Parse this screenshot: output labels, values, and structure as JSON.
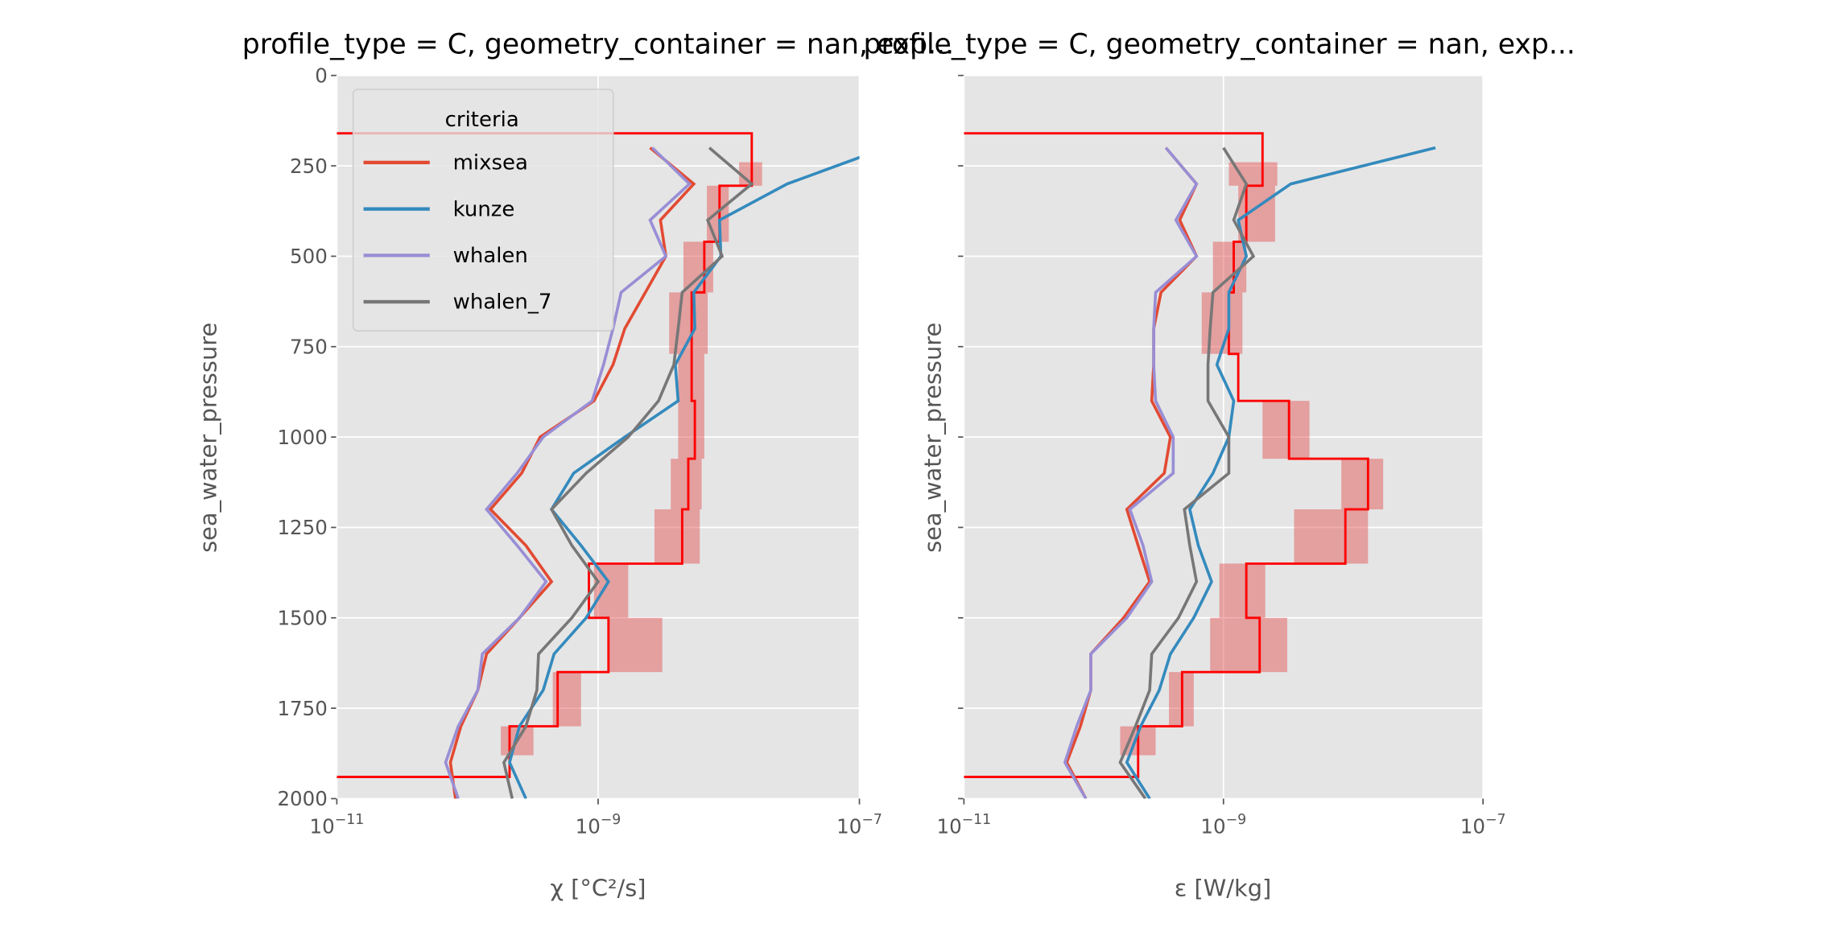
{
  "chart_data": [
    {
      "type": "line",
      "title": "profile_type = C, geometry_container = nan, exp...",
      "xlabel": "χ [°C²/s]",
      "ylabel": "sea_water_pressure",
      "xscale": "log",
      "xlim": [
        1e-11,
        1e-07
      ],
      "ylim": [
        2000,
        0
      ],
      "xticks": [
        "10^-11",
        "10^-9",
        "10^-7"
      ],
      "yticks": [
        "0",
        "250",
        "500",
        "750",
        "1000",
        "1250",
        "1500",
        "1750",
        "2000"
      ],
      "grid": true,
      "legend": {
        "title": "criteria",
        "placement": "upper-left"
      },
      "pressure": [
        200,
        300,
        400,
        500,
        600,
        700,
        800,
        900,
        1000,
        1100,
        1200,
        1300,
        1400,
        1500,
        1600,
        1700,
        1800,
        1900,
        2000
      ],
      "series": [
        {
          "name": "mixsea",
          "color": "#E24A33",
          "values": [
            2.5e-09,
            5.4e-09,
            3e-09,
            3.3e-09,
            2.3e-09,
            1.6e-09,
            1.3e-09,
            9.3e-10,
            3.6e-10,
            2.6e-10,
            1.5e-10,
            2.8e-10,
            4.4e-10,
            2.5e-10,
            1.4e-10,
            1.2e-10,
            8.9e-11,
            7.4e-11,
            8.1e-11
          ]
        },
        {
          "name": "kunze",
          "color": "#348ABD",
          "values": [
            1.6e-07,
            2.8e-08,
            8.5e-09,
            8.7e-09,
            5.4e-09,
            5.5e-09,
            3.9e-09,
            4.1e-09,
            1.6e-09,
            6.5e-10,
            4.4e-10,
            7.4e-10,
            1.2e-09,
            8.1e-10,
            4.6e-10,
            3.8e-10,
            2.5e-10,
            2.1e-10,
            2.8e-10
          ]
        },
        {
          "name": "whalen",
          "color": "#988ED5",
          "values": [
            2.6e-09,
            5e-09,
            2.5e-09,
            3.3e-09,
            1.5e-09,
            1.3e-09,
            1.1e-09,
            9e-10,
            3.8e-10,
            2.4e-10,
            1.4e-10,
            2.4e-10,
            4e-10,
            2.5e-10,
            1.3e-10,
            1.2e-10,
            8.5e-11,
            6.8e-11,
            8.5e-11
          ]
        },
        {
          "name": "whalen_7",
          "color": "#777777",
          "values": [
            7.1e-09,
            1.5e-08,
            6.9e-09,
            8.9e-09,
            4.4e-09,
            4.1e-09,
            3.8e-09,
            2.9e-09,
            1.7e-09,
            8.1e-10,
            4.4e-10,
            6.3e-10,
            1e-09,
            6.3e-10,
            3.5e-10,
            3.4e-10,
            2.8e-10,
            1.9e-10,
            2.2e-10
          ]
        }
      ],
      "step": {
        "color": "#FF0000",
        "edges": [
          160,
          305,
          460,
          600,
          770,
          900,
          1060,
          1200,
          1350,
          1500,
          1650,
          1800,
          1940
        ],
        "values": [
          1.5e-08,
          8.5e-09,
          6.5e-09,
          5.2e-09,
          5.2e-09,
          5.5e-09,
          4.9e-09,
          4.4e-09,
          8.5e-10,
          1.2e-09,
          4.9e-10,
          2.1e-10
        ]
      },
      "ranges": {
        "color": "#E24A4A",
        "boxes": [
          [
            240,
            305,
            1.2e-08,
            1.8e-08
          ],
          [
            305,
            460,
            6.8e-09,
            1e-08
          ],
          [
            460,
            600,
            4.5e-09,
            7.6e-09
          ],
          [
            600,
            770,
            3.5e-09,
            6.9e-09
          ],
          [
            770,
            1060,
            4.1e-09,
            6.5e-09
          ],
          [
            1060,
            1200,
            3.6e-09,
            6.2e-09
          ],
          [
            1200,
            1350,
            2.7e-09,
            6e-09
          ],
          [
            1350,
            1500,
            9.3e-10,
            1.7e-09
          ],
          [
            1500,
            1650,
            1.2e-09,
            3.1e-09
          ],
          [
            1650,
            1800,
            4.5e-10,
            7.4e-10
          ],
          [
            1800,
            1880,
            1.8e-10,
            3.2e-10
          ]
        ]
      }
    },
    {
      "type": "line",
      "title": "profile_type = C, geometry_container = nan, exp...",
      "xlabel": "ε [W/kg]",
      "ylabel": "sea_water_pressure",
      "xscale": "log",
      "xlim": [
        1e-11,
        1e-07
      ],
      "ylim": [
        2000,
        0
      ],
      "xticks": [
        "10^-11",
        "10^-9",
        "10^-7"
      ],
      "grid": true,
      "pressure": [
        200,
        300,
        400,
        500,
        600,
        700,
        800,
        900,
        1000,
        1100,
        1200,
        1300,
        1400,
        1500,
        1600,
        1700,
        1800,
        1900,
        2000
      ],
      "series": [
        {
          "name": "mixsea",
          "color": "#E24A33",
          "values": [
            3.6e-10,
            6.2e-10,
            4.6e-10,
            6.2e-10,
            3.3e-10,
            2.9e-10,
            2.9e-10,
            2.8e-10,
            3.9e-10,
            3.5e-10,
            1.8e-10,
            2.2e-10,
            2.7e-10,
            1.7e-10,
            9.5e-11,
            9.5e-11,
            7.9e-11,
            6.2e-11,
            8.7e-11
          ]
        },
        {
          "name": "kunze",
          "color": "#348ABD",
          "values": [
            4.3e-08,
            3.3e-09,
            1.3e-09,
            1.5e-09,
            1.1e-09,
            1.1e-09,
            8.9e-10,
            1.2e-09,
            1.1e-09,
            8.3e-10,
            5.5e-10,
            6.4e-10,
            8.1e-10,
            5.9e-10,
            3.9e-10,
            3.2e-10,
            2.3e-10,
            1.8e-10,
            2.7e-10
          ]
        },
        {
          "name": "whalen",
          "color": "#988ED5",
          "values": [
            3.6e-10,
            6.2e-10,
            4.3e-10,
            6.2e-10,
            3e-10,
            2.9e-10,
            2.9e-10,
            3e-10,
            4.1e-10,
            4.1e-10,
            1.9e-10,
            2.4e-10,
            2.8e-10,
            1.8e-10,
            9.5e-11,
            9.5e-11,
            7.4e-11,
            6e-11,
            8.7e-11
          ]
        },
        {
          "name": "whalen_7",
          "color": "#777777",
          "values": [
            1e-09,
            1.5e-09,
            1.2e-09,
            1.7e-09,
            8.3e-10,
            7.9e-10,
            7.6e-10,
            7.6e-10,
            1.1e-09,
            1.1e-09,
            5e-10,
            5.5e-10,
            6.2e-10,
            4.5e-10,
            2.8e-10,
            2.7e-10,
            2.1e-10,
            1.6e-10,
            2.5e-10
          ]
        }
      ],
      "step": {
        "color": "#FF0000",
        "edges": [
          160,
          305,
          460,
          600,
          770,
          900,
          1060,
          1200,
          1350,
          1500,
          1650,
          1800,
          1940
        ],
        "values": [
          2e-09,
          1.5e-09,
          1.2e-09,
          1.1e-09,
          1.3e-09,
          3.2e-09,
          1.3e-08,
          8.7e-09,
          1.5e-09,
          1.9e-09,
          4.8e-10,
          2.2e-10
        ]
      },
      "ranges": {
        "color": "#E24A4A",
        "boxes": [
          [
            240,
            305,
            1.1e-09,
            2.6e-09
          ],
          [
            305,
            460,
            1.3e-09,
            2.5e-09
          ],
          [
            460,
            600,
            8.3e-10,
            1.5e-09
          ],
          [
            600,
            770,
            6.8e-10,
            1.4e-09
          ],
          [
            900,
            1060,
            2e-09,
            4.6e-09
          ],
          [
            1060,
            1200,
            8.1e-09,
            1.7e-08
          ],
          [
            1200,
            1350,
            3.5e-09,
            1.3e-08
          ],
          [
            1350,
            1500,
            9.3e-10,
            2.1e-09
          ],
          [
            1500,
            1650,
            7.9e-10,
            3.1e-09
          ],
          [
            1650,
            1800,
            3.8e-10,
            5.9e-10
          ],
          [
            1800,
            1880,
            1.6e-10,
            3e-10
          ]
        ]
      }
    }
  ]
}
